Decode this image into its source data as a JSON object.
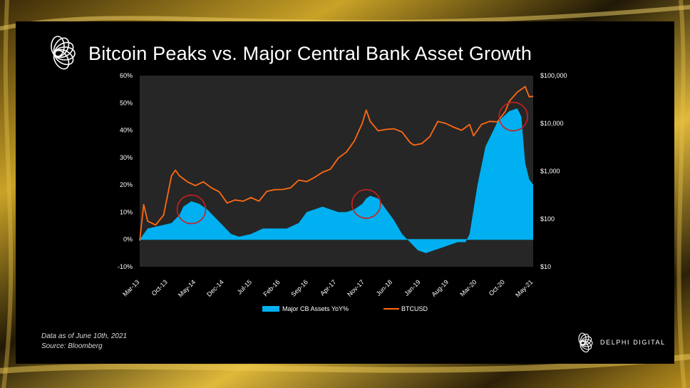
{
  "slide": {
    "title": "Bitcoin Peaks vs. Major Central Bank Asset Growth",
    "footnote_line1": "Data as of June 10th, 2021",
    "footnote_line2": "Source: Bloomberg",
    "brand_name": "DELPHI DIGITAL"
  },
  "colors": {
    "cb_assets": "#00b0f0",
    "btc": "#ff6a13",
    "highlight_circle": "#cc1f1f",
    "plot_background": "#262626",
    "slide_background": "#000000"
  },
  "chart_data": {
    "type": "area",
    "title": "Bitcoin Peaks vs. Major Central Bank Asset Growth",
    "x_tick_labels": [
      "Mar-13",
      "Oct-13",
      "May-14",
      "Dec-14",
      "Jul-15",
      "Feb-16",
      "Sep-16",
      "Apr-17",
      "Nov-17",
      "Jun-18",
      "Jan-19",
      "Aug-19",
      "Mar-20",
      "Oct-20",
      "May-21"
    ],
    "x_range": [
      "2013-03",
      "2021-06"
    ],
    "y_left": {
      "ticks": [
        "-10%",
        "0%",
        "10%",
        "20%",
        "30%",
        "40%",
        "50%",
        "60%"
      ],
      "range": [
        -10,
        60
      ],
      "unit": "%"
    },
    "y_right": {
      "ticks": [
        "$10",
        "$100",
        "$1,000",
        "$10,000",
        "$100,000"
      ],
      "range": [
        10,
        100000
      ],
      "scale": "log"
    },
    "legend": [
      "Major CB Assets YoY%",
      "BTCUSD"
    ],
    "legend_position": "bottom",
    "series": [
      {
        "name": "Major CB Assets YoY%",
        "type": "area",
        "axis": "left",
        "points": [
          [
            "2013-03",
            0
          ],
          [
            "2013-05",
            4
          ],
          [
            "2013-08",
            5
          ],
          [
            "2013-11",
            6
          ],
          [
            "2014-01",
            9
          ],
          [
            "2014-02",
            12
          ],
          [
            "2014-04",
            14
          ],
          [
            "2014-06",
            13
          ],
          [
            "2014-08",
            11
          ],
          [
            "2014-10",
            8
          ],
          [
            "2014-12",
            5
          ],
          [
            "2015-02",
            2
          ],
          [
            "2015-04",
            1
          ],
          [
            "2015-07",
            2
          ],
          [
            "2015-10",
            4
          ],
          [
            "2016-01",
            4
          ],
          [
            "2016-04",
            4
          ],
          [
            "2016-07",
            6
          ],
          [
            "2016-09",
            10
          ],
          [
            "2016-11",
            11
          ],
          [
            "2017-01",
            12
          ],
          [
            "2017-03",
            11
          ],
          [
            "2017-05",
            10
          ],
          [
            "2017-07",
            10
          ],
          [
            "2017-09",
            11
          ],
          [
            "2017-11",
            13
          ],
          [
            "2017-12",
            15
          ],
          [
            "2018-01",
            16
          ],
          [
            "2018-03",
            15
          ],
          [
            "2018-05",
            11
          ],
          [
            "2018-07",
            7
          ],
          [
            "2018-09",
            2
          ],
          [
            "2018-11",
            -1
          ],
          [
            "2019-01",
            -4
          ],
          [
            "2019-03",
            -5
          ],
          [
            "2019-05",
            -4
          ],
          [
            "2019-07",
            -3
          ],
          [
            "2019-09",
            -2
          ],
          [
            "2019-11",
            -1
          ],
          [
            "2020-01",
            -1
          ],
          [
            "2020-02",
            2
          ],
          [
            "2020-04",
            20
          ],
          [
            "2020-06",
            34
          ],
          [
            "2020-09",
            43
          ],
          [
            "2020-12",
            47
          ],
          [
            "2021-02",
            48
          ],
          [
            "2021-03",
            45
          ],
          [
            "2021-04",
            28
          ],
          [
            "2021-05",
            22
          ],
          [
            "2021-06",
            20
          ]
        ]
      },
      {
        "name": "BTCUSD",
        "type": "line",
        "axis": "right",
        "points": [
          [
            "2013-03",
            35
          ],
          [
            "2013-04",
            200
          ],
          [
            "2013-05",
            90
          ],
          [
            "2013-07",
            75
          ],
          [
            "2013-09",
            120
          ],
          [
            "2013-11",
            800
          ],
          [
            "2013-12",
            1050
          ],
          [
            "2014-01",
            800
          ],
          [
            "2014-03",
            600
          ],
          [
            "2014-05",
            500
          ],
          [
            "2014-07",
            600
          ],
          [
            "2014-09",
            450
          ],
          [
            "2014-11",
            370
          ],
          [
            "2015-01",
            215
          ],
          [
            "2015-03",
            250
          ],
          [
            "2015-05",
            235
          ],
          [
            "2015-07",
            280
          ],
          [
            "2015-09",
            235
          ],
          [
            "2015-11",
            380
          ],
          [
            "2016-01",
            410
          ],
          [
            "2016-03",
            415
          ],
          [
            "2016-05",
            450
          ],
          [
            "2016-07",
            650
          ],
          [
            "2016-09",
            605
          ],
          [
            "2016-11",
            740
          ],
          [
            "2017-01",
            950
          ],
          [
            "2017-03",
            1100
          ],
          [
            "2017-05",
            1900
          ],
          [
            "2017-07",
            2500
          ],
          [
            "2017-09",
            4300
          ],
          [
            "2017-11",
            10000
          ],
          [
            "2017-12",
            19000
          ],
          [
            "2018-01",
            11000
          ],
          [
            "2018-03",
            7000
          ],
          [
            "2018-05",
            7500
          ],
          [
            "2018-07",
            7700
          ],
          [
            "2018-09",
            6600
          ],
          [
            "2018-11",
            4000
          ],
          [
            "2018-12",
            3500
          ],
          [
            "2019-02",
            3800
          ],
          [
            "2019-04",
            5300
          ],
          [
            "2019-06",
            11000
          ],
          [
            "2019-08",
            10000
          ],
          [
            "2019-10",
            8300
          ],
          [
            "2019-12",
            7200
          ],
          [
            "2020-02",
            9500
          ],
          [
            "2020-03",
            5500
          ],
          [
            "2020-05",
            9500
          ],
          [
            "2020-07",
            11000
          ],
          [
            "2020-09",
            10800
          ],
          [
            "2020-11",
            18000
          ],
          [
            "2020-12",
            29000
          ],
          [
            "2021-02",
            45000
          ],
          [
            "2021-04",
            59000
          ],
          [
            "2021-05",
            36000
          ],
          [
            "2021-06",
            36500
          ]
        ]
      }
    ],
    "annotations": [
      {
        "type": "circle",
        "x": "2014-04",
        "series": "Major CB Assets YoY%",
        "y": 11
      },
      {
        "type": "circle",
        "x": "2017-12",
        "series": "Major CB Assets YoY%",
        "y": 13
      },
      {
        "type": "circle",
        "x": "2021-01",
        "series": "Major CB Assets YoY%",
        "y": 45
      }
    ]
  }
}
